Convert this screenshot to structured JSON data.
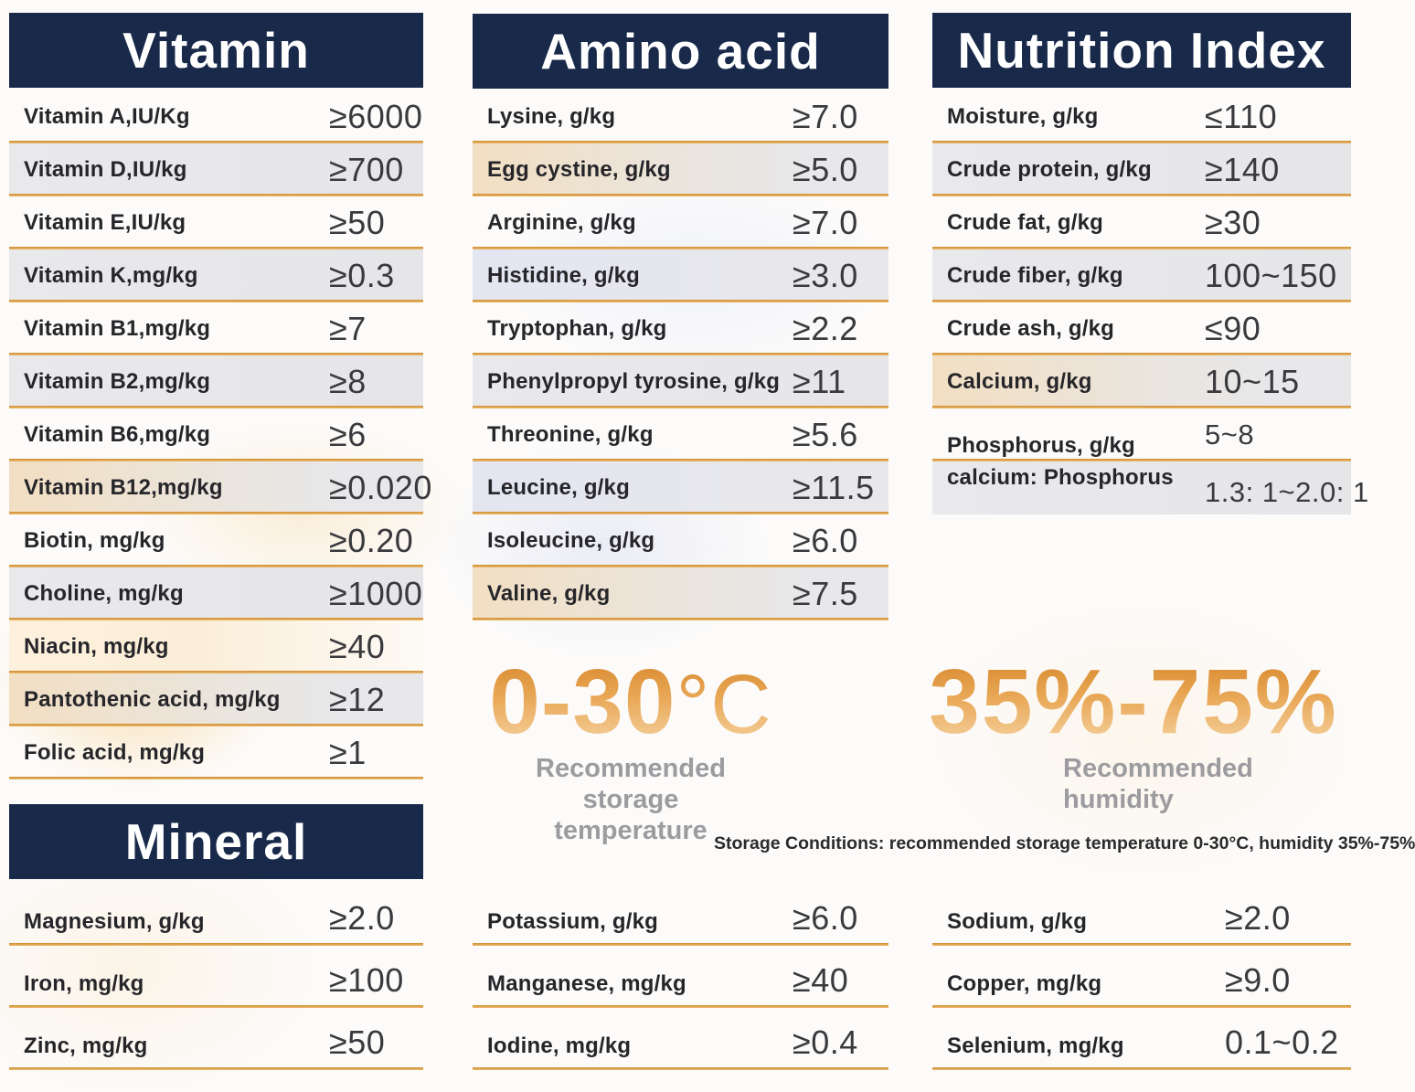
{
  "colors": {
    "header_navy": "#19294a",
    "divider_orange": "#dd9a3c",
    "label_text": "#26262a",
    "value_text": "#3a3a3e",
    "big_number_orange": "#e2973b",
    "caption_gray": "#9c9ca0"
  },
  "vitamin": {
    "title": "Vitamin",
    "rows": [
      {
        "label": "Vitamin A,IU/Kg",
        "value": "≥6000",
        "shade": "white"
      },
      {
        "label": "Vitamin D,IU/kg",
        "value": "≥700",
        "shade": "gray"
      },
      {
        "label": "Vitamin E,IU/kg",
        "value": "≥50",
        "shade": "white"
      },
      {
        "label": "Vitamin K,mg/kg",
        "value": "≥0.3",
        "shade": "gray"
      },
      {
        "label": "Vitamin B1,mg/kg",
        "value": "≥7",
        "shade": "white"
      },
      {
        "label": "Vitamin B2,mg/kg",
        "value": "≥8",
        "shade": "gray"
      },
      {
        "label": "Vitamin B6,mg/kg",
        "value": "≥6",
        "shade": "white"
      },
      {
        "label": "Vitamin B12,mg/kg",
        "value": "≥0.020",
        "shade": "warm"
      },
      {
        "label": "Biotin, mg/kg",
        "value": "≥0.20",
        "shade": "white"
      },
      {
        "label": "Choline, mg/kg",
        "value": "≥1000",
        "shade": "gray"
      },
      {
        "label": "Niacin, mg/kg",
        "value": "≥40",
        "shade": "warmlight"
      },
      {
        "label": "Pantothenic acid, mg/kg",
        "value": "≥12",
        "shade": "warm"
      },
      {
        "label": "Folic acid, mg/kg",
        "value": "≥1",
        "shade": "white"
      }
    ]
  },
  "amino": {
    "title": "Amino acid",
    "rows": [
      {
        "label": "Lysine, g/kg",
        "value": "≥7.0",
        "shade": "white"
      },
      {
        "label": "Egg cystine, g/kg",
        "value": "≥5.0",
        "shade": "warm"
      },
      {
        "label": "Arginine, g/kg",
        "value": "≥7.0",
        "shade": "white"
      },
      {
        "label": "Histidine, g/kg",
        "value": "≥3.0",
        "shade": "blue"
      },
      {
        "label": "Tryptophan, g/kg",
        "value": "≥2.2",
        "shade": "white"
      },
      {
        "label": "Phenylpropyl tyrosine, g/kg",
        "value": "≥11",
        "shade": "gray"
      },
      {
        "label": "Threonine, g/kg",
        "value": "≥5.6",
        "shade": "white"
      },
      {
        "label": "Leucine, g/kg",
        "value": "≥11.5",
        "shade": "blue"
      },
      {
        "label": "Isoleucine, g/kg",
        "value": "≥6.0",
        "shade": "white"
      },
      {
        "label": "Valine, g/kg",
        "value": "≥7.5",
        "shade": "warm"
      }
    ]
  },
  "nutrition": {
    "title": "Nutrition Index",
    "rows": [
      {
        "label": "Moisture, g/kg",
        "value": "≤110",
        "shade": "white"
      },
      {
        "label": "Crude protein, g/kg",
        "value": "≥140",
        "shade": "gray"
      },
      {
        "label": "Crude fat, g/kg",
        "value": "≥30",
        "shade": "white"
      },
      {
        "label": "Crude fiber, g/kg",
        "value": "100~150",
        "shade": "gray"
      },
      {
        "label": "Crude ash, g/kg",
        "value": "≤90",
        "shade": "white"
      },
      {
        "label": "Calcium, g/kg",
        "value": "10~15",
        "shade": "warm"
      }
    ],
    "phosphorus": {
      "label_line1": "Phosphorus, g/kg",
      "label_line2": "calcium: Phosphorus",
      "value_line1": "5~8",
      "value_line2": "1.3: 1~2.0: 1"
    }
  },
  "mineral": {
    "title": "Mineral",
    "left_rows": [
      {
        "label": "Magnesium, g/kg",
        "value": "≥2.0",
        "shade": "white"
      },
      {
        "label": "Iron, mg/kg",
        "value": "≥100",
        "shade": "white"
      },
      {
        "label": "Zinc, mg/kg",
        "value": "≥50",
        "shade": "white"
      }
    ],
    "middle_rows": [
      {
        "label": "Potassium, g/kg",
        "value": "≥6.0",
        "shade": "white"
      },
      {
        "label": "Manganese, mg/kg",
        "value": "≥40",
        "shade": "white"
      },
      {
        "label": "Iodine, mg/kg",
        "value": "≥0.4",
        "shade": "white"
      }
    ],
    "right_rows": [
      {
        "label": "Sodium, g/kg",
        "value": "≥2.0",
        "shade": "white"
      },
      {
        "label": "Copper, mg/kg",
        "value": "≥9.0",
        "shade": "white"
      },
      {
        "label": "Selenium, mg/kg",
        "value": "0.1~0.2",
        "shade": "white"
      }
    ]
  },
  "storage": {
    "temperature_value": "0-30",
    "temperature_unit": "°C",
    "temperature_caption": "Recommended storage temperature",
    "humidity_value": "35%-75%",
    "humidity_caption": "Recommended humidity",
    "conditions_note": "Storage Conditions: recommended storage temperature 0-30°C, humidity 35%-75%"
  }
}
